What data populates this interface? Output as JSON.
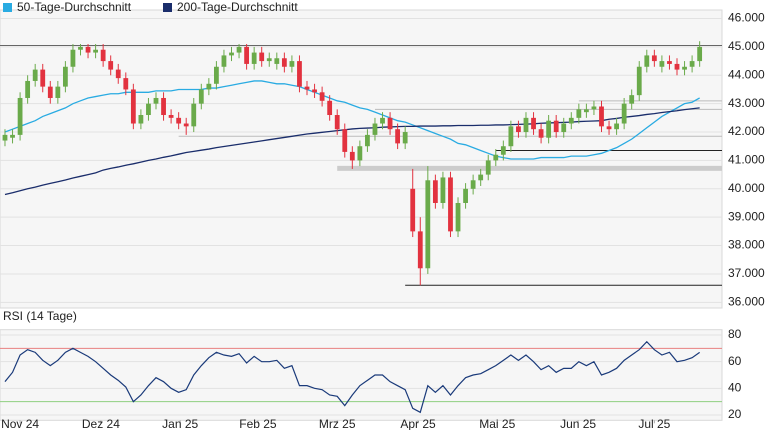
{
  "chart_data": [
    {
      "type": "candlestick",
      "series": [
        {
          "name": "50-Tage-Durchschnitt",
          "color": "#29abe2",
          "values": [
            42000,
            42100,
            42200,
            42300,
            42400,
            42550,
            42650,
            42750,
            42850,
            43000,
            43100,
            43200,
            43250,
            43300,
            43350,
            43350,
            43400,
            43400,
            43400,
            43400,
            43450,
            43450,
            43450,
            43500,
            43500,
            43500,
            43500,
            43550,
            43550,
            43600,
            43650,
            43700,
            43750,
            43800,
            43800,
            43750,
            43700,
            43700,
            43650,
            43600,
            43500,
            43400,
            43300,
            43200,
            43100,
            43050,
            42950,
            42850,
            42800,
            42700,
            42600,
            42500,
            42400,
            42350,
            42250,
            42150,
            42050,
            41950,
            41850,
            41750,
            41600,
            41550,
            41450,
            41350,
            41250,
            41150,
            41100,
            41050,
            41050,
            41050,
            41050,
            41100,
            41100,
            41100,
            41100,
            41150,
            41150,
            41150,
            41200,
            41250,
            41350,
            41450,
            41600,
            41750,
            41950,
            42150,
            42350,
            42550,
            42700,
            42850,
            43000,
            43050,
            43200
          ]
        },
        {
          "name": "200-Tage-Durchschnitt",
          "color": "#1a2d6b",
          "values": [
            39800,
            39860,
            39930,
            40000,
            40060,
            40130,
            40190,
            40250,
            40310,
            40380,
            40440,
            40500,
            40560,
            40660,
            40720,
            40770,
            40830,
            40880,
            40940,
            41000,
            41050,
            41110,
            41160,
            41220,
            41280,
            41320,
            41360,
            41400,
            41450,
            41490,
            41530,
            41570,
            41610,
            41650,
            41690,
            41730,
            41770,
            41810,
            41850,
            41890,
            41930,
            41960,
            41990,
            42020,
            42050,
            42080,
            42110,
            42130,
            42140,
            42150,
            42170,
            42180,
            42190,
            42200,
            42200,
            42210,
            42210,
            42210,
            42220,
            42220,
            42230,
            42230,
            42230,
            42240,
            42240,
            42250,
            42250,
            42260,
            42270,
            42280,
            42290,
            42310,
            42320,
            42330,
            42340,
            42350,
            42370,
            42380,
            42390,
            42400,
            42450,
            42480,
            42520,
            42550,
            42580,
            42620,
            42650,
            42690,
            42720,
            42750,
            42790,
            42820,
            42850
          ]
        }
      ],
      "open": [
        41700,
        41800,
        41900,
        43200,
        43800,
        44200,
        43600,
        43200,
        43600,
        44300,
        44900,
        45000,
        44800,
        44900,
        44500,
        44200,
        43900,
        43500,
        42300,
        42600,
        43000,
        43200,
        42600,
        42500,
        42300,
        42200,
        43000,
        43500,
        43700,
        44300,
        44700,
        44800,
        45000,
        44400,
        44800,
        44500,
        44400,
        44600,
        44300,
        44500,
        43600,
        43500,
        43400,
        43100,
        42600,
        42100,
        41300,
        41000,
        41500,
        41900,
        42300,
        42500,
        42100,
        41600,
        40000,
        38500,
        37200,
        40300,
        39500,
        40400,
        38500,
        39500,
        40000,
        40300,
        40500,
        41000,
        41200,
        41500,
        42200,
        42000,
        42500,
        42100,
        41800,
        42400,
        42000,
        42300,
        42500,
        42700,
        42800,
        42900,
        42200,
        42100,
        42300,
        43000,
        43300,
        44300,
        44700,
        44300,
        44500,
        44400,
        44200,
        44300,
        44500
      ],
      "high": [
        42100,
        42100,
        43400,
        44000,
        44400,
        44400,
        43800,
        43800,
        44500,
        45100,
        45100,
        45100,
        45100,
        45100,
        44700,
        44400,
        44100,
        43700,
        42800,
        43200,
        43400,
        43400,
        42800,
        42700,
        42500,
        43200,
        43700,
        43900,
        44500,
        44900,
        45000,
        45100,
        45100,
        45000,
        45000,
        44800,
        44800,
        44800,
        44700,
        44700,
        43800,
        43700,
        43600,
        43300,
        42800,
        42300,
        41500,
        41700,
        42100,
        42500,
        42700,
        42700,
        42300,
        42200,
        40700,
        39000,
        40800,
        40500,
        40600,
        40600,
        39700,
        40200,
        40500,
        40700,
        41200,
        41400,
        41700,
        42400,
        42400,
        42700,
        42700,
        42300,
        42600,
        42600,
        42500,
        42700,
        43000,
        43000,
        43100,
        43100,
        42400,
        42500,
        43200,
        43500,
        44500,
        44900,
        44900,
        44700,
        44700,
        44600,
        44500,
        44700,
        45200
      ],
      "low": [
        41500,
        41600,
        41700,
        43000,
        43600,
        43400,
        43000,
        43000,
        43400,
        44100,
        44700,
        44600,
        44600,
        44300,
        44000,
        43700,
        43300,
        42100,
        42100,
        42400,
        42800,
        42400,
        42300,
        42100,
        41900,
        42000,
        42800,
        43300,
        43500,
        44100,
        44500,
        44600,
        44200,
        44200,
        44300,
        44300,
        44200,
        44100,
        44100,
        43400,
        43300,
        43200,
        42900,
        42400,
        41900,
        41100,
        40700,
        40800,
        41300,
        41700,
        42100,
        41900,
        41400,
        41400,
        38300,
        36600,
        37000,
        39300,
        39300,
        38300,
        38300,
        39300,
        39800,
        40100,
        40300,
        40800,
        41000,
        41300,
        41800,
        41800,
        41900,
        41600,
        41600,
        41800,
        41800,
        42100,
        42300,
        42500,
        42600,
        42000,
        41900,
        41900,
        42100,
        42800,
        43100,
        44100,
        44300,
        44100,
        44200,
        44000,
        44000,
        44100,
        44300
      ],
      "close": [
        41900,
        41900,
        43200,
        43800,
        44200,
        43600,
        43200,
        43600,
        44300,
        44900,
        45000,
        44800,
        44900,
        44500,
        44200,
        43900,
        43500,
        42300,
        42600,
        43000,
        43200,
        42600,
        42500,
        42300,
        42200,
        43000,
        43500,
        43700,
        44300,
        44700,
        44800,
        45000,
        44400,
        44800,
        44500,
        44600,
        44600,
        44300,
        44500,
        43600,
        43500,
        43400,
        43100,
        42600,
        42100,
        41300,
        41000,
        41500,
        41900,
        42300,
        42500,
        42100,
        41600,
        42000,
        38500,
        37200,
        40300,
        39500,
        40400,
        38500,
        39500,
        40000,
        40300,
        40500,
        41000,
        41200,
        41500,
        42200,
        42000,
        42500,
        42100,
        41800,
        42400,
        42000,
        42300,
        42500,
        42800,
        42800,
        42900,
        42200,
        42100,
        42300,
        43000,
        43300,
        44300,
        44700,
        44500,
        44500,
        44400,
        44200,
        44300,
        44500,
        45000
      ],
      "up_color": "#6aaa4a",
      "down_color": "#e2323f",
      "xlim": [
        -0.66,
        94.96
      ],
      "ylim": [
        35800,
        46300
      ],
      "yticks": [
        {
          "value": 36000,
          "label": "36.000"
        },
        {
          "value": 37000,
          "label": "37.000"
        },
        {
          "value": 38000,
          "label": "38.000"
        },
        {
          "value": 39000,
          "label": "39.000"
        },
        {
          "value": 40000,
          "label": "40.000"
        },
        {
          "value": 41000,
          "label": "41.000"
        },
        {
          "value": 42000,
          "label": "42.000"
        },
        {
          "value": 43000,
          "label": "43.000"
        },
        {
          "value": 44000,
          "label": "44.000"
        },
        {
          "value": 45000,
          "label": "45.000"
        },
        {
          "value": 46000,
          "label": "46.000"
        }
      ],
      "grid": true,
      "levels": [
        {
          "value": 45050,
          "color": "#666666",
          "width": 1
        },
        {
          "value": 42800,
          "from": 49,
          "color": "#bbbbbb",
          "width": 1
        },
        {
          "value": 41850,
          "from": 23,
          "color": "#bbbbbb",
          "width": 1
        },
        {
          "value": 43100,
          "from": 76,
          "color": "#bbbbbb",
          "width": 1
        },
        {
          "value": 40720,
          "from": 44,
          "color": "#cccccc",
          "width": 5
        },
        {
          "value": 41350,
          "from": 65,
          "color": "#222222",
          "width": 1
        },
        {
          "value": 36600,
          "from": 53,
          "color": "#222222",
          "width": 1
        }
      ]
    },
    {
      "type": "line",
      "title": "RSI (14 Tage)",
      "series": [
        {
          "color": "#1a3a7a",
          "values": [
            45,
            52,
            65,
            69,
            67,
            61,
            57,
            61,
            67,
            70,
            67,
            64,
            60,
            55,
            50,
            46,
            41,
            30,
            35,
            42,
            48,
            45,
            40,
            37,
            39,
            50,
            57,
            63,
            67,
            65,
            64,
            66,
            59,
            64,
            60,
            60,
            61,
            55,
            57,
            42,
            42,
            40,
            39,
            35,
            34,
            27,
            35,
            42,
            46,
            50,
            50,
            45,
            42,
            39,
            25,
            22,
            42,
            37,
            42,
            35,
            42,
            48,
            50,
            51,
            54,
            57,
            61,
            65,
            61,
            65,
            60,
            54,
            57,
            52,
            55,
            55,
            60,
            57,
            60,
            50,
            52,
            55,
            61,
            65,
            69,
            75,
            69,
            65,
            67,
            60,
            61,
            63,
            67
          ]
        }
      ],
      "xlim": [
        -0.66,
        94.96
      ],
      "xticks": [
        {
          "value": 2,
          "label": "Nov 24"
        },
        {
          "value": 12.7,
          "label": "Dez 24"
        },
        {
          "value": 23.2,
          "label": "Jan 25"
        },
        {
          "value": 33.5,
          "label": "Feb 25"
        },
        {
          "value": 44,
          "label": "Mrz 25"
        },
        {
          "value": 54.7,
          "label": "Apr 25"
        },
        {
          "value": 65.2,
          "label": "Mai 25"
        },
        {
          "value": 75.9,
          "label": "Jun 25"
        },
        {
          "value": 86,
          "label": "Jul 25"
        }
      ],
      "ylim": [
        16,
        84
      ],
      "yticks": [
        20,
        40,
        60,
        80
      ],
      "grid": true,
      "levels": [
        {
          "value": 70,
          "color": "#e88080",
          "width": 1
        },
        {
          "value": 30,
          "color": "#8fcf80",
          "width": 1
        }
      ]
    }
  ]
}
